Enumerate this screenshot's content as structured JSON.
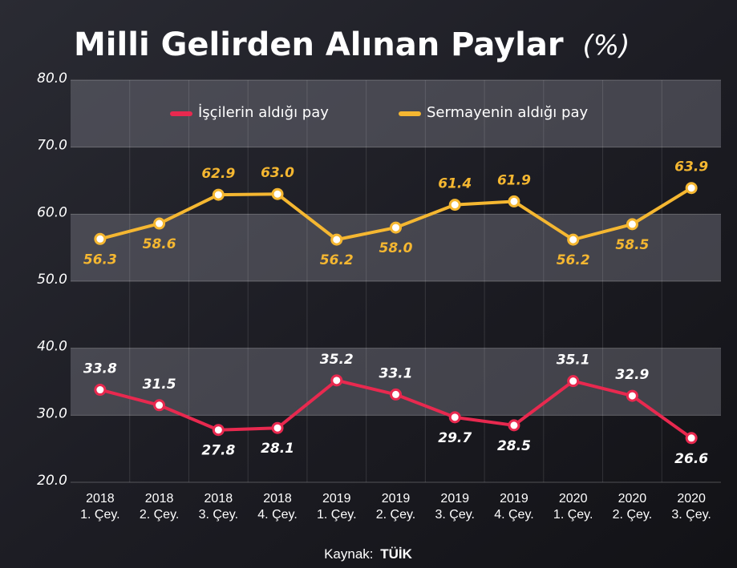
{
  "chart_data": {
    "type": "line",
    "title": "Milli Gelirden Alınan Paylar",
    "unit": "(%)",
    "categories": [
      [
        "2018",
        "1. Çey."
      ],
      [
        "2018",
        "2. Çey."
      ],
      [
        "2018",
        "3. Çey."
      ],
      [
        "2018",
        "4. Çey."
      ],
      [
        "2019",
        "1. Çey."
      ],
      [
        "2019",
        "2. Çey."
      ],
      [
        "2019",
        "3. Çey."
      ],
      [
        "2019",
        "4. Çey."
      ],
      [
        "2020",
        "1. Çey."
      ],
      [
        "2020",
        "2. Çey."
      ],
      [
        "2020",
        "3. Çey."
      ]
    ],
    "series": [
      {
        "name": "İşçilerin aldığı pay",
        "color": "#e8294f",
        "values": [
          33.8,
          31.5,
          27.8,
          28.1,
          35.2,
          33.1,
          29.7,
          28.5,
          35.1,
          32.9,
          26.6
        ],
        "value_labels": [
          "33.8",
          "31.5",
          "27.8",
          "28.1",
          "35.2",
          "33.1",
          "29.7",
          "28.5",
          "35.1",
          "32.9",
          "26.6"
        ]
      },
      {
        "name": "Sermayenin aldığı pay",
        "color": "#f5b731",
        "values": [
          56.3,
          58.6,
          62.9,
          63.0,
          56.2,
          58.0,
          61.4,
          61.9,
          56.2,
          58.5,
          63.9
        ],
        "value_labels": [
          "56.3",
          "58.6",
          "62.9",
          "63.0",
          "56.2",
          "58.0",
          "61.4",
          "61.9",
          "56.2",
          "58.5",
          "63.9"
        ]
      }
    ],
    "ylim": [
      20,
      80
    ],
    "yticks": [
      {
        "value": 20,
        "label": "20.0"
      },
      {
        "value": 30,
        "label": "30.0"
      },
      {
        "value": 40,
        "label": "40.0"
      },
      {
        "value": 50,
        "label": "50.0"
      },
      {
        "value": 60,
        "label": "60.0"
      },
      {
        "value": 70,
        "label": "70.0"
      },
      {
        "value": 80,
        "label": "80.0"
      }
    ],
    "source_label": "Kaynak:",
    "source": "TÜİK"
  }
}
